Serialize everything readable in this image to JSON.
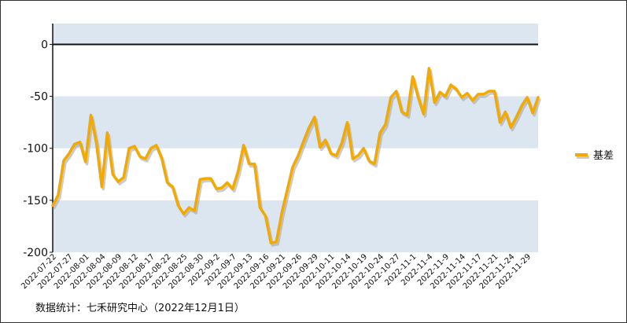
{
  "chart_data": {
    "type": "line",
    "title": "",
    "xlabel": "",
    "ylabel": "",
    "ylim": [
      -200,
      20
    ],
    "yticks": [
      0,
      -50,
      -100,
      -150,
      -200
    ],
    "grid": false,
    "bands": true,
    "legend": {
      "position": "right"
    },
    "series": [
      {
        "name": "基差",
        "color": "#f2a900",
        "shadow_color": "#a0a0a0",
        "values": [
          -155,
          -145,
          -112,
          -105,
          -96,
          -94,
          -113,
          -68,
          -95,
          -137,
          -85,
          -125,
          -132,
          -128,
          -100,
          -98,
          -108,
          -110,
          -100,
          -97,
          -110,
          -133,
          -137,
          -155,
          -163,
          -157,
          -160,
          -130,
          -129,
          -129,
          -139,
          -138,
          -133,
          -139,
          -122,
          -97,
          -115,
          -115,
          -157,
          -165,
          -191,
          -190,
          -162,
          -140,
          -118,
          -107,
          -93,
          -80,
          -70,
          -99,
          -92,
          -105,
          -107,
          -95,
          -75,
          -110,
          -107,
          -100,
          -112,
          -115,
          -85,
          -77,
          -51,
          -45,
          -65,
          -68,
          -31,
          -51,
          -67,
          -23,
          -56,
          -46,
          -50,
          -39,
          -43,
          -51,
          -47,
          -54,
          -48,
          -48,
          -45,
          -45,
          -75,
          -65,
          -80,
          -70,
          -59,
          -51,
          -66,
          -51
        ]
      }
    ],
    "x_tick_labels": [
      "2022-07-22",
      "2022-07-27",
      "2022-08-01",
      "2022-08-04",
      "2022-08-09",
      "2022-08-12",
      "2022-08-17",
      "2022-08-22",
      "2022-08-25",
      "2022-08-30",
      "2022-09-2",
      "2022-09-7",
      "2022-09-13",
      "2022-09-16",
      "2022-09-21",
      "2022-09-26",
      "2022-09-29",
      "2022-10-11",
      "2022-10-14",
      "2022-10-19",
      "2022-10-24",
      "2022-10-27",
      "2022-11-1",
      "2022-11-4",
      "2022-11-9",
      "2022-11-14",
      "2022-11-17",
      "2022-11-21",
      "2022-11-24",
      "2022-11-29"
    ]
  },
  "footer": {
    "source": "数据统计：七禾研究中心（2022年12月1日）"
  }
}
